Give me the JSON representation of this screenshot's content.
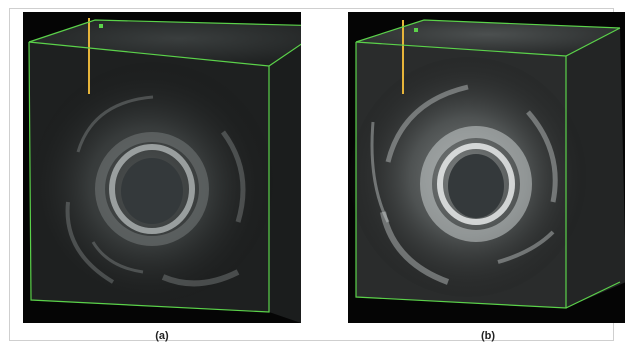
{
  "figure": {
    "panels": [
      {
        "label": "(a)",
        "wall_brightness": 0.55
      },
      {
        "label": "(b)",
        "wall_brightness": 0.85
      }
    ],
    "colors": {
      "background": "#050505",
      "volume_box": "#5bd24a",
      "needle": "#e6b43a",
      "lumen": "#34393b",
      "tissue": "#8a8f8e"
    }
  }
}
